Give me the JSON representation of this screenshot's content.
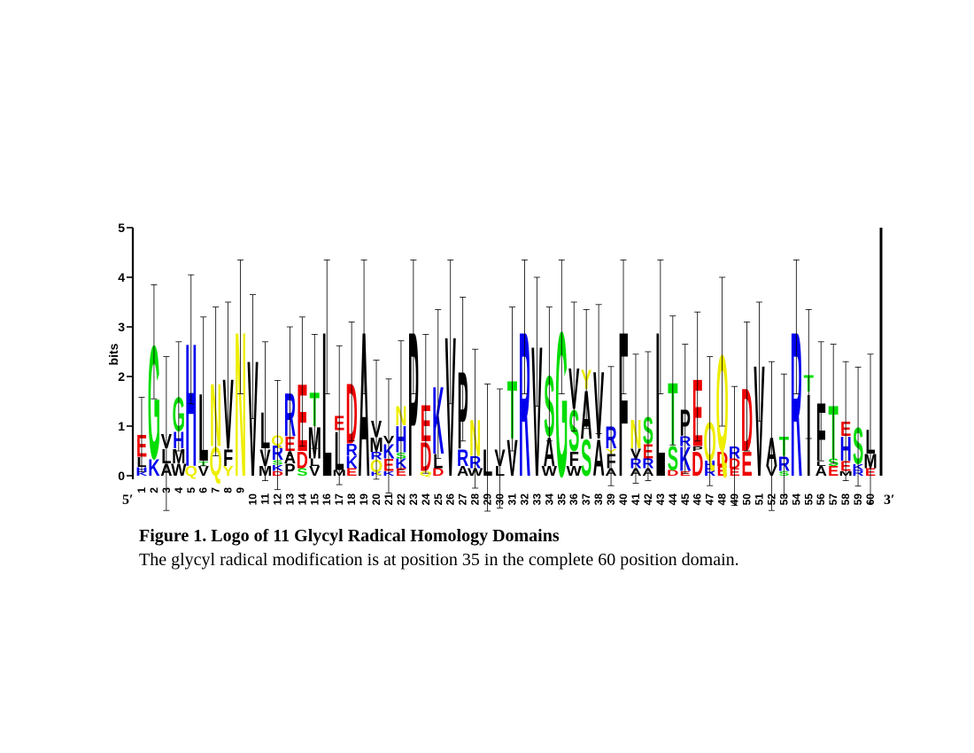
{
  "chart_data": {
    "type": "sequence-logo",
    "ylabel": "bits",
    "ylim": [
      0,
      5
    ],
    "yticks": [
      0,
      1,
      2,
      3,
      4,
      5
    ],
    "left_end_label": "5′",
    "right_end_label": "3′",
    "colors": {
      "hydrophobic": "#000000",
      "polar_G": "#00dd00",
      "basic": "#0000ee",
      "acidic": "#ee0000",
      "aromatic_Y_N_Q": "#eeee00"
    },
    "positions": [
      {
        "pos": 1,
        "stack": [
          [
            "K",
            0.08
          ],
          [
            "H",
            0.1
          ],
          [
            "L",
            0.2
          ],
          [
            "E",
            0.45
          ]
        ],
        "err": 0.75
      },
      {
        "pos": 2,
        "stack": [
          [
            "K",
            0.35
          ],
          [
            "G",
            2.35
          ]
        ],
        "err": 1.15
      },
      {
        "pos": 3,
        "stack": [
          [
            "A",
            0.25
          ],
          [
            "L",
            0.3
          ],
          [
            "V",
            0.3
          ]
        ],
        "err": 1.55
      },
      {
        "pos": 4,
        "stack": [
          [
            "W",
            0.25
          ],
          [
            "M",
            0.3
          ],
          [
            "H",
            0.35
          ],
          [
            "G",
            0.7
          ]
        ],
        "err": 1.1
      },
      {
        "pos": 5,
        "stack": [
          [
            "Q",
            0.2
          ],
          [
            "H",
            2.55
          ]
        ],
        "err": 1.3
      },
      {
        "pos": 6,
        "stack": [
          [
            "V",
            0.2
          ],
          [
            "T",
            0.1
          ],
          [
            "L",
            1.4
          ]
        ],
        "err": 1.5
      },
      {
        "pos": 7,
        "stack": [
          [
            "Q",
            0.6
          ],
          [
            "N",
            1.3
          ]
        ],
        "err": 1.5
      },
      {
        "pos": 8,
        "stack": [
          [
            "Y",
            0.2
          ],
          [
            "F",
            0.35
          ],
          [
            "V",
            1.45
          ]
        ],
        "err": 1.5
      },
      {
        "pos": 9,
        "stack": [
          [
            "N",
            3.0
          ]
        ],
        "err": 1.35
      },
      {
        "pos": 10,
        "stack": [
          [
            "V",
            2.4
          ]
        ],
        "err": 1.25
      },
      {
        "pos": 11,
        "stack": [
          [
            "M",
            0.2
          ],
          [
            "V",
            0.35
          ],
          [
            "L",
            0.75
          ]
        ],
        "err": 1.4
      },
      {
        "pos": 12,
        "stack": [
          [
            "D",
            0.1
          ],
          [
            "K",
            0.12
          ],
          [
            "S",
            0.1
          ],
          [
            "R",
            0.3
          ],
          [
            "Q",
            0.2
          ]
        ],
        "err": 1.1
      },
      {
        "pos": 13,
        "stack": [
          [
            "P",
            0.25
          ],
          [
            "A",
            0.25
          ],
          [
            "E",
            0.3
          ],
          [
            "R",
            0.9
          ]
        ],
        "err": 1.3
      },
      {
        "pos": 14,
        "stack": [
          [
            "S",
            0.15
          ],
          [
            "D",
            0.35
          ],
          [
            "E",
            1.4
          ]
        ],
        "err": 1.3
      },
      {
        "pos": 15,
        "stack": [
          [
            "V",
            0.2
          ],
          [
            "L",
            0.15
          ],
          [
            "M",
            0.65
          ],
          [
            "T",
            0.7
          ]
        ],
        "err": 1.15
      },
      {
        "pos": 16,
        "stack": [
          [
            "L",
            3.0
          ]
        ],
        "err": 1.35
      },
      {
        "pos": 17,
        "stack": [
          [
            "M",
            0.12
          ],
          [
            "L",
            0.8
          ],
          [
            "E",
            0.3
          ]
        ],
        "err": 1.4
      },
      {
        "pos": 18,
        "stack": [
          [
            "E",
            0.15
          ],
          [
            "K",
            0.25
          ],
          [
            "R",
            0.25
          ],
          [
            "D",
            1.25
          ]
        ],
        "err": 1.2
      },
      {
        "pos": 19,
        "stack": [
          [
            "A",
            3.0
          ]
        ],
        "err": 1.35
      },
      {
        "pos": 20,
        "stack": [
          [
            "K",
            0.08
          ],
          [
            "Q",
            0.25
          ],
          [
            "R",
            0.15
          ],
          [
            "M",
            0.3
          ],
          [
            "V",
            0.35
          ]
        ],
        "err": 1.2
      },
      {
        "pos": 21,
        "stack": [
          [
            "K",
            0.1
          ],
          [
            "E",
            0.25
          ],
          [
            "K",
            0.3
          ],
          [
            "V",
            0.15
          ]
        ],
        "err": 1.15
      },
      {
        "pos": 22,
        "stack": [
          [
            "E",
            0.15
          ],
          [
            "K",
            0.2
          ],
          [
            "S",
            0.12
          ],
          [
            "H",
            0.55
          ],
          [
            "N",
            0.4
          ]
        ],
        "err": 1.3
      },
      {
        "pos": 23,
        "stack": [
          [
            "P",
            3.0
          ]
        ],
        "err": 1.35
      },
      {
        "pos": 24,
        "stack": [
          [
            "Q",
            0.1
          ],
          [
            "D",
            0.6
          ],
          [
            "E",
            0.75
          ]
        ],
        "err": 1.4
      },
      {
        "pos": 25,
        "stack": [
          [
            "D",
            0.15
          ],
          [
            "L",
            0.3
          ],
          [
            "K",
            1.4
          ]
        ],
        "err": 1.5
      },
      {
        "pos": 26,
        "stack": [
          [
            "V",
            2.9
          ]
        ],
        "err": 1.45
      },
      {
        "pos": 27,
        "stack": [
          [
            "A",
            0.2
          ],
          [
            "R",
            0.35
          ],
          [
            "P",
            1.6
          ]
        ],
        "err": 1.45
      },
      {
        "pos": 28,
        "stack": [
          [
            "W",
            0.15
          ],
          [
            "R",
            0.25
          ],
          [
            "N",
            0.75
          ]
        ],
        "err": 1.4
      },
      {
        "pos": 29,
        "stack": [
          [
            "L",
            0.55
          ]
        ],
        "err": 1.3
      },
      {
        "pos": 30,
        "stack": [
          [
            "L",
            0.2
          ],
          [
            "V",
            0.35
          ]
        ],
        "err": 1.2
      },
      {
        "pos": 31,
        "stack": [
          [
            "V",
            0.75
          ],
          [
            "T",
            1.2
          ]
        ],
        "err": 1.45
      },
      {
        "pos": 32,
        "stack": [
          [
            "R",
            3.0
          ]
        ],
        "err": 1.35
      },
      {
        "pos": 33,
        "stack": [
          [
            "V",
            2.7
          ]
        ],
        "err": 1.3
      },
      {
        "pos": 34,
        "stack": [
          [
            "W",
            0.2
          ],
          [
            "A",
            0.6
          ],
          [
            "S",
            1.25
          ]
        ],
        "err": 1.35
      },
      {
        "pos": 35,
        "stack": [
          [
            "G",
            3.0
          ]
        ],
        "err": 1.35
      },
      {
        "pos": 36,
        "stack": [
          [
            "W",
            0.2
          ],
          [
            "F",
            0.3
          ],
          [
            "S",
            0.85
          ],
          [
            "V",
            0.85
          ]
        ],
        "err": 1.3
      },
      {
        "pos": 37,
        "stack": [
          [
            "S",
            0.75
          ],
          [
            "A",
            1.0
          ],
          [
            "Y",
            0.4
          ]
        ],
        "err": 1.2
      },
      {
        "pos": 38,
        "stack": [
          [
            "A",
            0.75
          ],
          [
            "V",
            1.4
          ]
        ],
        "err": 1.3
      },
      {
        "pos": 39,
        "stack": [
          [
            "A",
            0.15
          ],
          [
            "F",
            0.3
          ],
          [
            "Y",
            0.1
          ],
          [
            "R",
            0.45
          ]
        ],
        "err": 1.2
      },
      {
        "pos": 40,
        "stack": [
          [
            "F",
            3.0
          ]
        ],
        "err": 1.35
      },
      {
        "pos": 41,
        "stack": [
          [
            "A",
            0.15
          ],
          [
            "R",
            0.2
          ],
          [
            "V",
            0.2
          ],
          [
            "N",
            0.6
          ]
        ],
        "err": 1.3
      },
      {
        "pos": 42,
        "stack": [
          [
            "A",
            0.15
          ],
          [
            "R",
            0.2
          ],
          [
            "E",
            0.3
          ],
          [
            "S",
            0.55
          ]
        ],
        "err": 1.3
      },
      {
        "pos": 43,
        "stack": [
          [
            "L",
            3.0
          ]
        ],
        "err": 1.35
      },
      {
        "pos": 44,
        "stack": [
          [
            "D",
            0.12
          ],
          [
            "S",
            0.5
          ],
          [
            "T",
            1.3
          ]
        ],
        "err": 1.3
      },
      {
        "pos": 45,
        "stack": [
          [
            "E",
            0.1
          ],
          [
            "K",
            0.5
          ],
          [
            "R",
            0.2
          ],
          [
            "P",
            0.55
          ]
        ],
        "err": 1.3
      },
      {
        "pos": 46,
        "stack": [
          [
            "D",
            0.5
          ],
          [
            "P",
            0.1
          ],
          [
            "E",
            1.4
          ]
        ],
        "err": 1.3
      },
      {
        "pos": 47,
        "stack": [
          [
            "R",
            0.15
          ],
          [
            "H",
            0.15
          ],
          [
            "Q",
            0.8
          ]
        ],
        "err": 1.3
      },
      {
        "pos": 48,
        "stack": [
          [
            "E",
            0.2
          ],
          [
            "D",
            0.3
          ],
          [
            "Q",
            2.0
          ]
        ],
        "err": 1.5
      },
      {
        "pos": 49,
        "stack": [
          [
            "E",
            0.15
          ],
          [
            "D",
            0.2
          ],
          [
            "R",
            0.25
          ]
        ],
        "err": 1.2
      },
      {
        "pos": 50,
        "stack": [
          [
            "E",
            0.5
          ],
          [
            "D",
            1.3
          ]
        ],
        "err": 1.3
      },
      {
        "pos": 51,
        "stack": [
          [
            "V",
            2.3
          ]
        ],
        "err": 1.2
      },
      {
        "pos": 52,
        "stack": [
          [
            "V",
            0.2
          ],
          [
            "A",
            0.6
          ]
        ],
        "err": 1.5
      },
      {
        "pos": 53,
        "stack": [
          [
            "S",
            0.1
          ],
          [
            "R",
            0.3
          ],
          [
            "T",
            0.4
          ]
        ],
        "err": 1.25
      },
      {
        "pos": 54,
        "stack": [
          [
            "R",
            3.0
          ]
        ],
        "err": 1.35
      },
      {
        "pos": 55,
        "stack": [
          [
            "I",
            1.7
          ],
          [
            "T",
            0.35
          ]
        ],
        "err": 1.3
      },
      {
        "pos": 56,
        "stack": [
          [
            "A",
            0.2
          ],
          [
            "L",
            0.1
          ],
          [
            "F",
            1.2
          ]
        ],
        "err": 1.2
      },
      {
        "pos": 57,
        "stack": [
          [
            "E",
            0.2
          ],
          [
            "S",
            0.15
          ],
          [
            "T",
            1.1
          ]
        ],
        "err": 1.2
      },
      {
        "pos": 58,
        "stack": [
          [
            "M",
            0.1
          ],
          [
            "E",
            0.2
          ],
          [
            "H",
            0.5
          ],
          [
            "E",
            0.3
          ]
        ],
        "err": 1.2
      },
      {
        "pos": 59,
        "stack": [
          [
            "R",
            0.12
          ],
          [
            "K",
            0.12
          ],
          [
            "S",
            0.75
          ]
        ],
        "err": 1.2
      },
      {
        "pos": 60,
        "stack": [
          [
            "E",
            0.15
          ],
          [
            "M",
            0.3
          ],
          [
            "L",
            0.5
          ]
        ],
        "err": 1.5
      }
    ]
  },
  "caption": {
    "title": "Figure 1. Logo of 11 Glycyl Radical Homology Domains",
    "body": "The glycyl radical modification is at position 35 in the complete 60 position domain."
  }
}
